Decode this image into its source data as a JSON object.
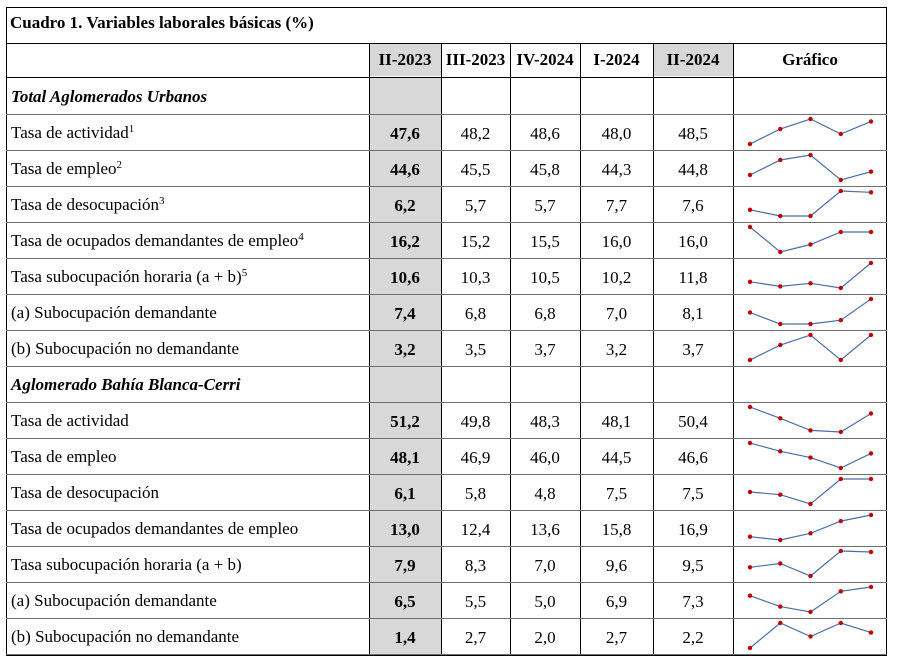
{
  "title": "Cuadro 1. Variables laborales básicas (%)",
  "columns": [
    "II-2023",
    "III-2023",
    "IV-2024",
    "I-2024",
    "II-2024",
    "Gráfico"
  ],
  "sections": [
    {
      "title": "Total Aglomerados Urbanos",
      "rows": [
        {
          "label": "Tasa de actividad",
          "note": "1",
          "values": [
            "47,6",
            "48,2",
            "48,6",
            "48,0",
            "48,5"
          ]
        },
        {
          "label": "Tasa de empleo",
          "note": "2",
          "values": [
            "44,6",
            "45,5",
            "45,8",
            "44,3",
            "44,8"
          ]
        },
        {
          "label": "Tasa de desocupación",
          "note": "3",
          "values": [
            "6,2",
            "5,7",
            "5,7",
            "7,7",
            "7,6"
          ]
        },
        {
          "label": "Tasa de ocupados demandantes de empleo",
          "note": "4",
          "values": [
            "16,2",
            "15,2",
            "15,5",
            "16,0",
            "16,0"
          ]
        },
        {
          "label": "Tasa subocupación horaria (a + b)",
          "note": "5",
          "values": [
            "10,6",
            "10,3",
            "10,5",
            "10,2",
            "11,8"
          ]
        },
        {
          "label": "(a) Subocupación demandante",
          "note": "",
          "values": [
            "7,4",
            "6,8",
            "6,8",
            "7,0",
            "8,1"
          ]
        },
        {
          "label": "(b) Subocupación no demandante",
          "note": "",
          "values": [
            "3,2",
            "3,5",
            "3,7",
            "3,2",
            "3,7"
          ]
        }
      ]
    },
    {
      "title": "Aglomerado Bahía Blanca-Cerri",
      "rows": [
        {
          "label": "Tasa de actividad",
          "note": "",
          "values": [
            "51,2",
            "49,8",
            "48,3",
            "48,1",
            "50,4"
          ]
        },
        {
          "label": "Tasa de empleo",
          "note": "",
          "values": [
            "48,1",
            "46,9",
            "46,0",
            "44,5",
            "46,6"
          ]
        },
        {
          "label": "Tasa de desocupación",
          "note": "",
          "values": [
            "6,1",
            "5,8",
            "4,8",
            "7,5",
            "7,5"
          ]
        },
        {
          "label": "Tasa de ocupados demandantes de empleo",
          "note": "",
          "values": [
            "13,0",
            "12,4",
            "13,6",
            "15,8",
            "16,9"
          ]
        },
        {
          "label": "Tasa subocupación horaria (a + b)",
          "note": "",
          "values": [
            "7,9",
            "8,3",
            "7,0",
            "9,6",
            "9,5"
          ]
        },
        {
          "label": "(a) Subocupación demandante",
          "note": "",
          "values": [
            "6,5",
            "5,5",
            "5,0",
            "6,9",
            "7,3"
          ]
        },
        {
          "label": "(b) Subocupación no demandante",
          "note": "",
          "values": [
            "1,4",
            "2,7",
            "2,0",
            "2,7",
            "2,2"
          ]
        }
      ]
    }
  ],
  "colors": {
    "line": "#4a6fa5",
    "marker": "#c00000",
    "shade": "#d8d8d8"
  }
}
